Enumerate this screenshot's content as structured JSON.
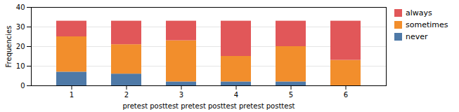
{
  "chart_data": {
    "type": "bar",
    "stacked": true,
    "categories": [
      "1",
      "2",
      "3",
      "4",
      "5",
      "6"
    ],
    "series": [
      {
        "name": "never",
        "values": [
          7,
          6,
          2,
          2,
          2,
          0
        ]
      },
      {
        "name": "sometimes",
        "values": [
          18,
          15,
          21,
          13,
          18,
          13
        ]
      },
      {
        "name": "always",
        "values": [
          8,
          12,
          10,
          18,
          13,
          20
        ]
      }
    ],
    "xlabel": "pretest posttest pretest posttest pretest posttest",
    "ylabel": "Frequencies",
    "ylim": [
      0,
      40
    ],
    "yticks": [
      0,
      10,
      20,
      30,
      40
    ],
    "grid": true,
    "legend": "right"
  }
}
